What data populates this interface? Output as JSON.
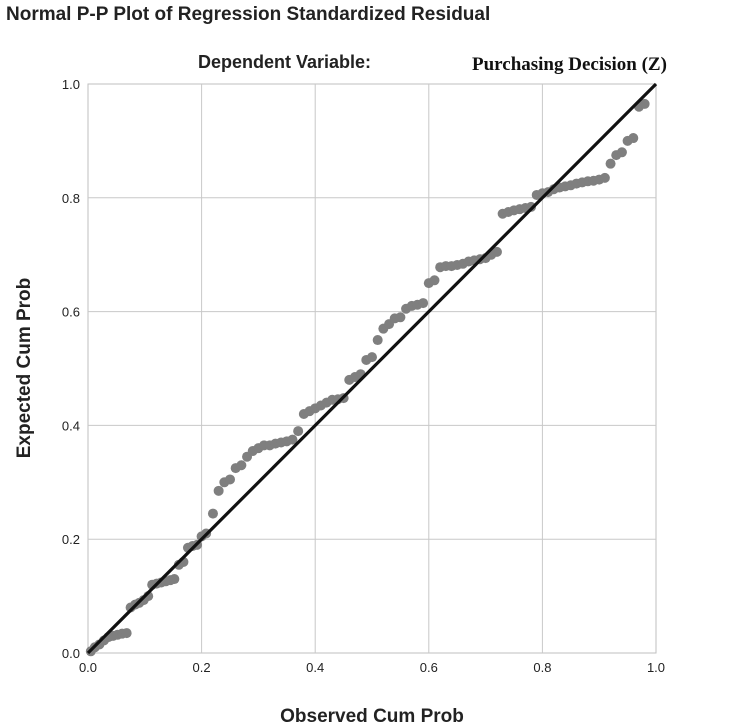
{
  "title": "Normal P-P Plot of Regression Standardized Residual",
  "subtitle_label": "Dependent Variable:",
  "subtitle_value": "Purchasing Decision  (Z)",
  "chart_data": {
    "type": "scatter",
    "title": "Normal P-P Plot of Regression Standardized Residual",
    "xlabel": "Observed Cum Prob",
    "ylabel": "Expected Cum Prob",
    "xlim": [
      0.0,
      1.0
    ],
    "ylim": [
      0.0,
      1.0
    ],
    "x_ticks": [
      "0.0",
      "0.2",
      "0.4",
      "0.6",
      "0.8",
      "1.0"
    ],
    "y_ticks": [
      "0.0",
      "0.2",
      "0.4",
      "0.6",
      "0.8",
      "1.0"
    ],
    "grid": true,
    "point_color": "#7f7f7f",
    "line_color": "#111111",
    "reference_line": {
      "from": [
        0,
        0
      ],
      "to": [
        1,
        1
      ]
    },
    "points": [
      [
        0.005,
        0.003
      ],
      [
        0.012,
        0.01
      ],
      [
        0.02,
        0.015
      ],
      [
        0.028,
        0.022
      ],
      [
        0.036,
        0.028
      ],
      [
        0.044,
        0.03
      ],
      [
        0.052,
        0.032
      ],
      [
        0.06,
        0.034
      ],
      [
        0.068,
        0.035
      ],
      [
        0.075,
        0.08
      ],
      [
        0.083,
        0.085
      ],
      [
        0.09,
        0.088
      ],
      [
        0.098,
        0.093
      ],
      [
        0.106,
        0.1
      ],
      [
        0.113,
        0.12
      ],
      [
        0.121,
        0.122
      ],
      [
        0.129,
        0.124
      ],
      [
        0.137,
        0.126
      ],
      [
        0.145,
        0.128
      ],
      [
        0.152,
        0.13
      ],
      [
        0.16,
        0.155
      ],
      [
        0.168,
        0.16
      ],
      [
        0.176,
        0.185
      ],
      [
        0.184,
        0.188
      ],
      [
        0.192,
        0.19
      ],
      [
        0.2,
        0.205
      ],
      [
        0.208,
        0.21
      ],
      [
        0.22,
        0.245
      ],
      [
        0.23,
        0.285
      ],
      [
        0.24,
        0.3
      ],
      [
        0.25,
        0.305
      ],
      [
        0.26,
        0.325
      ],
      [
        0.27,
        0.33
      ],
      [
        0.28,
        0.345
      ],
      [
        0.29,
        0.355
      ],
      [
        0.3,
        0.36
      ],
      [
        0.31,
        0.365
      ],
      [
        0.32,
        0.365
      ],
      [
        0.33,
        0.368
      ],
      [
        0.34,
        0.37
      ],
      [
        0.35,
        0.372
      ],
      [
        0.36,
        0.375
      ],
      [
        0.37,
        0.39
      ],
      [
        0.38,
        0.42
      ],
      [
        0.39,
        0.425
      ],
      [
        0.4,
        0.43
      ],
      [
        0.41,
        0.435
      ],
      [
        0.42,
        0.44
      ],
      [
        0.43,
        0.445
      ],
      [
        0.44,
        0.446
      ],
      [
        0.45,
        0.448
      ],
      [
        0.46,
        0.48
      ],
      [
        0.47,
        0.485
      ],
      [
        0.48,
        0.49
      ],
      [
        0.49,
        0.515
      ],
      [
        0.5,
        0.52
      ],
      [
        0.51,
        0.55
      ],
      [
        0.52,
        0.57
      ],
      [
        0.53,
        0.578
      ],
      [
        0.54,
        0.588
      ],
      [
        0.55,
        0.59
      ],
      [
        0.56,
        0.605
      ],
      [
        0.57,
        0.61
      ],
      [
        0.58,
        0.612
      ],
      [
        0.59,
        0.615
      ],
      [
        0.6,
        0.65
      ],
      [
        0.61,
        0.655
      ],
      [
        0.62,
        0.678
      ],
      [
        0.63,
        0.68
      ],
      [
        0.64,
        0.68
      ],
      [
        0.65,
        0.682
      ],
      [
        0.66,
        0.684
      ],
      [
        0.67,
        0.688
      ],
      [
        0.68,
        0.69
      ],
      [
        0.69,
        0.692
      ],
      [
        0.7,
        0.694
      ],
      [
        0.71,
        0.7
      ],
      [
        0.72,
        0.705
      ],
      [
        0.73,
        0.772
      ],
      [
        0.74,
        0.775
      ],
      [
        0.75,
        0.778
      ],
      [
        0.76,
        0.78
      ],
      [
        0.77,
        0.782
      ],
      [
        0.78,
        0.784
      ],
      [
        0.79,
        0.805
      ],
      [
        0.8,
        0.808
      ],
      [
        0.81,
        0.81
      ],
      [
        0.82,
        0.815
      ],
      [
        0.83,
        0.818
      ],
      [
        0.84,
        0.82
      ],
      [
        0.85,
        0.822
      ],
      [
        0.86,
        0.825
      ],
      [
        0.87,
        0.827
      ],
      [
        0.88,
        0.829
      ],
      [
        0.89,
        0.83
      ],
      [
        0.9,
        0.832
      ],
      [
        0.91,
        0.835
      ],
      [
        0.92,
        0.86
      ],
      [
        0.93,
        0.875
      ],
      [
        0.94,
        0.88
      ],
      [
        0.95,
        0.9
      ],
      [
        0.96,
        0.905
      ],
      [
        0.97,
        0.96
      ],
      [
        0.98,
        0.965
      ]
    ]
  }
}
